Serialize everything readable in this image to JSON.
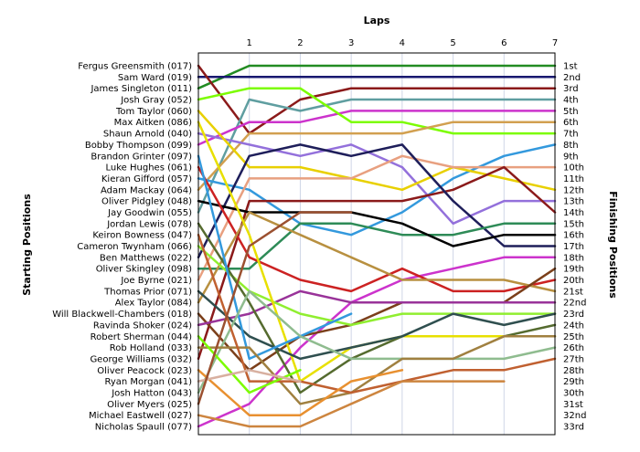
{
  "chart_data": {
    "type": "line",
    "title": "",
    "xlabel": "Laps",
    "ylabel_left": "Starting Positions",
    "ylabel_right": "Finishing Positions",
    "x_ticks": [
      "1",
      "2",
      "3",
      "4",
      "5",
      "6",
      "7"
    ],
    "xlim": [
      0,
      7
    ],
    "ylim": [
      1,
      33
    ],
    "y_inverted": true,
    "grid": true,
    "starting_positions": [
      "Fergus Greensmith (017)",
      "Sam Ward (019)",
      "James Singleton (011)",
      "Josh Gray (052)",
      "Tom Taylor (060)",
      "Max Aitken (086)",
      "Shaun Arnold (040)",
      "Bobby Thompson (099)",
      "Brandon Grinter (097)",
      "Luke Hughes (061)",
      "Kieran Gifford (057)",
      "Adam Mackay (064)",
      "Oliver Pidgley (048)",
      "Jay Goodwin (055)",
      "Jordan Lewis (078)",
      "Keiron Bowness (047)",
      "Cameron Twynham (066)",
      "Ben Matthews (022)",
      "Oliver Skingley (098)",
      "Joe Byrne (021)",
      "Thomas Prior (071)",
      "Alex Taylor (084)",
      "Will Blackwell-Chambers (018)",
      "Ravinda Shoker (024)",
      "Robert Sherman (044)",
      "Rob Holland (033)",
      "George Williams (032)",
      "Oliver Peacock (023)",
      "Ryan Morgan (041)",
      "Josh Hatton (043)",
      "Oliver Myers (025)",
      "Michael Eastwell (027)",
      "Nicholas Spaull (077)"
    ],
    "finishing_positions": [
      "1st",
      "2nd",
      "3rd",
      "4th",
      "5th",
      "6th",
      "7th",
      "8th",
      "9th",
      "10th",
      "11th",
      "12th",
      "13th",
      "14th",
      "15th",
      "16th",
      "17th",
      "18th",
      "19th",
      "20th",
      "21st",
      "22nd",
      "23rd",
      "24th",
      "25th",
      "26th",
      "27th",
      "28th",
      "29th",
      "30th",
      "31st",
      "32nd",
      "33rd"
    ],
    "series": [
      {
        "color": "#228b22",
        "values": [
          3,
          1,
          1,
          1,
          1,
          1,
          1,
          1
        ]
      },
      {
        "color": "#191970",
        "values": [
          2,
          2,
          2,
          2,
          2,
          2,
          2,
          2
        ]
      },
      {
        "color": "#8b1a1a",
        "values": [
          1,
          7,
          4,
          3,
          3,
          3,
          3,
          3
        ]
      },
      {
        "color": "#5f9ea0",
        "values": [
          14,
          4,
          5,
          4,
          4,
          4,
          4,
          4
        ]
      },
      {
        "color": "#cc33cc",
        "values": [
          8,
          6,
          6,
          5,
          5,
          5,
          5,
          5
        ]
      },
      {
        "color": "#7cfc00",
        "values": [
          4,
          3,
          3,
          6,
          6,
          7,
          7,
          7
        ]
      },
      {
        "color": "#d2a050",
        "values": [
          12,
          7,
          7,
          7,
          7,
          6,
          6,
          6
        ]
      },
      {
        "color": "#3399dd",
        "values": [
          11,
          12,
          15,
          16,
          14,
          11,
          9,
          8
        ]
      },
      {
        "color": "#9370db",
        "values": [
          7,
          8,
          9,
          8,
          10,
          15,
          13,
          13
        ]
      },
      {
        "color": "#e8d000",
        "values": [
          5,
          10,
          10,
          11,
          12,
          10,
          11,
          12
        ]
      },
      {
        "color": "#e8a080",
        "values": [
          20,
          11,
          11,
          11,
          9,
          10,
          10,
          10
        ]
      },
      {
        "color": "#8b1a1a",
        "values": [
          27,
          13,
          13,
          13,
          13,
          12,
          10,
          14
        ]
      },
      {
        "color": "#1e1e5a",
        "values": [
          18,
          9,
          8,
          9,
          8,
          13,
          17,
          17
        ]
      },
      {
        "color": "#2e8b57",
        "values": [
          19,
          19,
          15,
          15,
          16,
          16,
          15,
          15
        ]
      },
      {
        "color": "#000000",
        "values": [
          13,
          14,
          14,
          14,
          15,
          17,
          16,
          16
        ]
      },
      {
        "color": "#cc33cc",
        "values": [
          33,
          31,
          26,
          22,
          20,
          19,
          18,
          18
        ]
      },
      {
        "color": "#cc2222",
        "values": [
          10,
          18,
          20,
          21,
          19,
          21,
          21,
          20
        ]
      },
      {
        "color": "#b89040",
        "values": [
          22,
          14,
          16,
          18,
          20,
          20,
          20,
          21
        ]
      },
      {
        "color": "#7b3f1a",
        "values": [
          23,
          28,
          25,
          24,
          22,
          22,
          22,
          19
        ]
      },
      {
        "color": "#993399",
        "values": [
          24,
          23,
          21,
          22,
          22,
          22,
          22,
          22
        ]
      },
      {
        "color": "#90ee30",
        "values": [
          17,
          21,
          23,
          24,
          23,
          23,
          23,
          23
        ]
      },
      {
        "color": "#556b2f",
        "values": [
          15,
          22,
          30,
          27,
          25,
          25,
          25,
          24
        ]
      },
      {
        "color": "#e8e000",
        "values": [
          6,
          16,
          29,
          26,
          25,
          25,
          25,
          25
        ]
      },
      {
        "color": "#2f4f4f",
        "values": [
          21,
          25,
          27,
          26,
          25,
          23,
          24,
          23
        ]
      },
      {
        "color": "#3399dd",
        "values": [
          9,
          27,
          25,
          23
        ]
      },
      {
        "color": "#8fbc8f",
        "values": [
          30,
          21,
          25,
          27,
          27,
          27,
          27,
          26
        ]
      },
      {
        "color": "#a08040",
        "values": [
          26,
          26,
          31,
          30,
          27,
          27,
          25,
          25
        ]
      },
      {
        "color": "#c06030",
        "values": [
          16,
          29,
          29,
          30,
          29,
          28,
          28,
          27
        ]
      },
      {
        "color": "#e89030",
        "values": [
          28,
          32,
          32,
          29,
          28
        ]
      },
      {
        "color": "#cd853f",
        "values": [
          32,
          33,
          33,
          31,
          29,
          29,
          29
        ]
      },
      {
        "color": "#7cfc00",
        "values": [
          25,
          30,
          28
        ]
      },
      {
        "color": "#d8b0a0",
        "values": [
          29,
          28,
          29
        ]
      },
      {
        "color": "#9b5030",
        "values": [
          31,
          17,
          14,
          14
        ]
      }
    ]
  }
}
